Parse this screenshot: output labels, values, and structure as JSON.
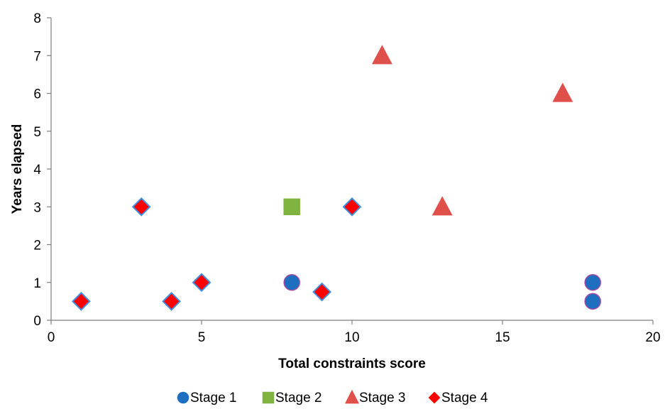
{
  "chart_data": {
    "type": "scatter",
    "title": "",
    "xlabel": "Total constraints score",
    "ylabel": "Years elapsed",
    "xlim": [
      0,
      20
    ],
    "ylim": [
      0,
      8
    ],
    "xticks": [
      0,
      5,
      10,
      15,
      20
    ],
    "yticks": [
      0,
      1,
      2,
      3,
      4,
      5,
      6,
      7,
      8
    ],
    "grid": false,
    "legend_position": "bottom",
    "series": [
      {
        "name": "Stage 1",
        "marker": "circle",
        "color": "#1f6fc0",
        "stroke": "#a04aa0",
        "points": [
          {
            "x": 8,
            "y": 1
          },
          {
            "x": 18,
            "y": 1
          },
          {
            "x": 18,
            "y": 0.5
          }
        ]
      },
      {
        "name": "Stage 2",
        "marker": "square",
        "color": "#7fb33f",
        "stroke": "#7fb33f",
        "points": [
          {
            "x": 8,
            "y": 3
          }
        ]
      },
      {
        "name": "Stage 3",
        "marker": "triangle",
        "color": "#e0504a",
        "stroke": "#e0504a",
        "points": [
          {
            "x": 11,
            "y": 7
          },
          {
            "x": 13,
            "y": 3
          },
          {
            "x": 17,
            "y": 6
          }
        ]
      },
      {
        "name": "Stage 4",
        "marker": "diamond",
        "color": "#ff0000",
        "stroke": "#3f8fe0",
        "points": [
          {
            "x": 1,
            "y": 0.5
          },
          {
            "x": 3,
            "y": 3
          },
          {
            "x": 4,
            "y": 0.5
          },
          {
            "x": 5,
            "y": 1
          },
          {
            "x": 9,
            "y": 0.75
          },
          {
            "x": 10,
            "y": 3
          }
        ]
      }
    ]
  }
}
